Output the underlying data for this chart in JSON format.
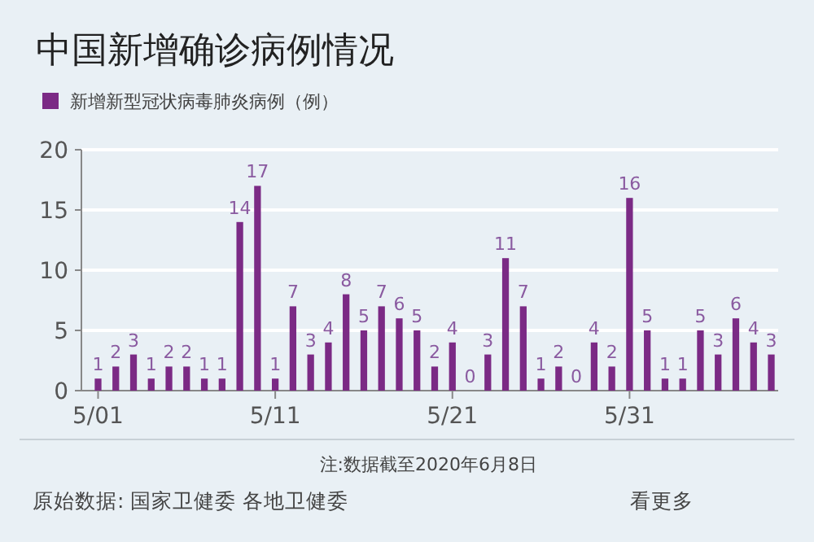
{
  "chart_data": {
    "type": "bar",
    "title": "中国新增确诊病例情况",
    "categories": [
      "5/01",
      null,
      null,
      null,
      null,
      null,
      null,
      null,
      null,
      null,
      "5/11",
      null,
      null,
      null,
      null,
      null,
      null,
      null,
      null,
      null,
      "5/21",
      null,
      null,
      null,
      null,
      null,
      null,
      null,
      null,
      null,
      "5/31",
      null,
      null,
      null,
      null,
      null,
      null,
      null,
      null
    ],
    "series": [
      {
        "name": "新增新型冠状病毒肺炎病例（例）",
        "color": "#7b2a85",
        "values": [
          1,
          2,
          3,
          1,
          2,
          2,
          1,
          1,
          14,
          17,
          1,
          7,
          3,
          4,
          8,
          5,
          7,
          6,
          5,
          2,
          4,
          0,
          3,
          11,
          7,
          1,
          2,
          0,
          4,
          2,
          16,
          5,
          1,
          1,
          5,
          3,
          6,
          4,
          3
        ]
      }
    ],
    "ylim": [
      0,
      20
    ],
    "yticks": [
      0,
      5,
      10,
      15,
      20
    ],
    "grid": "y",
    "legend": "top left",
    "data_labels": true,
    "annotations": [
      "注:数据截至2020年6月8日",
      "原始数据: 国家卫健委 各地卫健委",
      "看更多"
    ]
  }
}
